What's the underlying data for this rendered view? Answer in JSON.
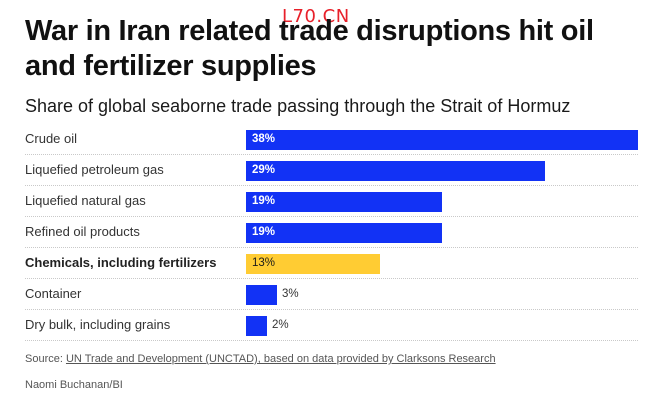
{
  "watermark": "L70.CN",
  "chart_data": {
    "type": "bar",
    "orientation": "horizontal",
    "title": "War in Iran related trade disruptions hit oil and fertilizer supplies",
    "subtitle": "Share of global seaborne trade passing through the Strait of Hormuz",
    "categories": [
      "Crude oil",
      "Liquefied petroleum gas",
      "Liquefied natural gas",
      "Refined oil products",
      "Chemicals, including fertilizers",
      "Container",
      "Dry bulk, including grains"
    ],
    "values": [
      38,
      29,
      19,
      19,
      13,
      3,
      2
    ],
    "value_labels": [
      "38%",
      "29%",
      "19%",
      "19%",
      "13%",
      "3%",
      "2%"
    ],
    "highlight_index": 4,
    "colors": {
      "default": "#1232f5",
      "highlight": "#ffcc33"
    },
    "unit": "%",
    "xlim": [
      0,
      38
    ],
    "grid": false
  },
  "source": {
    "prefix": "Source: ",
    "link_text": "UN Trade and Development (UNCTAD), based on data provided by Clarksons Research"
  },
  "credit": "Naomi Buchanan/BI"
}
